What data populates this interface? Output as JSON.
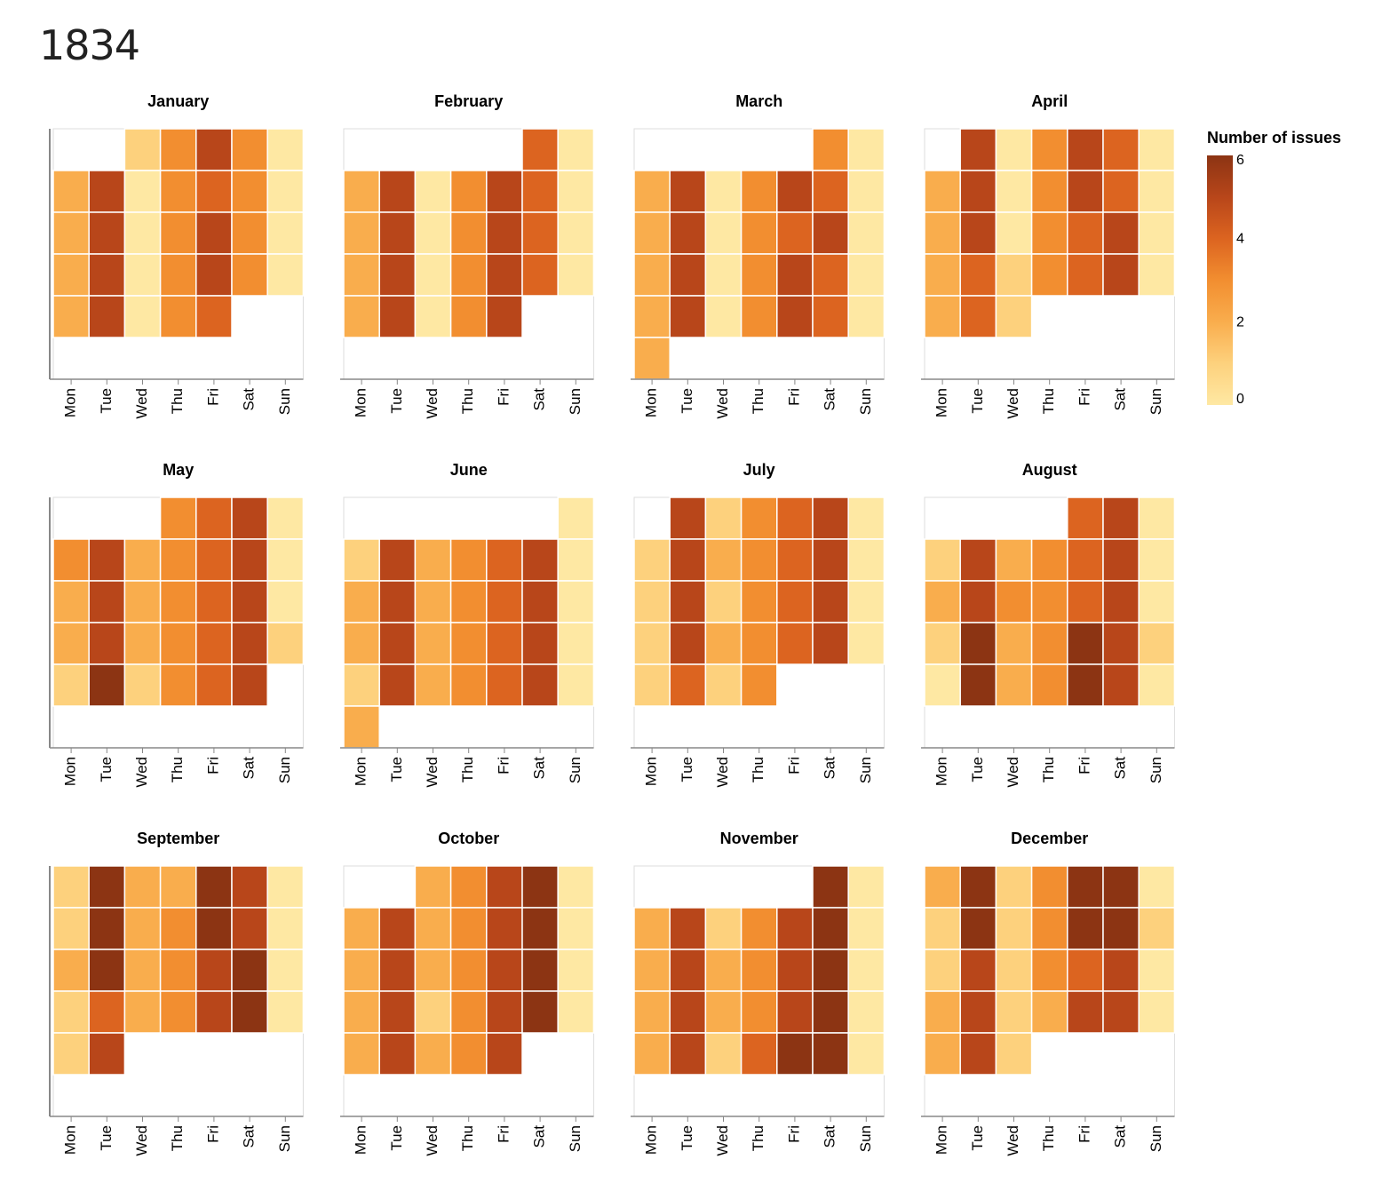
{
  "page_title": "1834",
  "colors": [
    "#fee8a3",
    "#fdd17d",
    "#f9ad4d",
    "#f28e30",
    "#dc6420",
    "#b8461a",
    "#8c3413"
  ],
  "chart_data": {
    "type": "heatmap",
    "title": "1834",
    "legend": {
      "title": "Number of issues",
      "min": 0,
      "max": 6,
      "ticks": [
        0,
        2,
        4,
        6
      ],
      "placement": "right"
    },
    "x_categories": [
      "Mon",
      "Tue",
      "Wed",
      "Thu",
      "Fri",
      "Sat",
      "Sun"
    ],
    "y": "week of month (unlabeled)",
    "months": [
      {
        "name": "January",
        "weeks": [
          [
            null,
            null,
            1,
            3,
            5,
            3,
            0
          ],
          [
            2,
            5,
            0,
            3,
            4,
            3,
            0
          ],
          [
            2,
            5,
            0,
            3,
            5,
            3,
            0
          ],
          [
            2,
            5,
            0,
            3,
            5,
            3,
            0
          ],
          [
            2,
            5,
            0,
            3,
            4,
            null,
            null
          ]
        ]
      },
      {
        "name": "February",
        "weeks": [
          [
            null,
            null,
            null,
            null,
            null,
            4,
            0
          ],
          [
            2,
            5,
            0,
            3,
            5,
            4,
            0
          ],
          [
            2,
            5,
            0,
            3,
            5,
            4,
            0
          ],
          [
            2,
            5,
            0,
            3,
            5,
            4,
            0
          ],
          [
            2,
            5,
            0,
            3,
            5,
            null,
            null
          ]
        ]
      },
      {
        "name": "March",
        "weeks": [
          [
            null,
            null,
            null,
            null,
            null,
            3,
            0
          ],
          [
            2,
            5,
            0,
            3,
            5,
            4,
            0
          ],
          [
            2,
            5,
            0,
            3,
            4,
            5,
            0
          ],
          [
            2,
            5,
            0,
            3,
            5,
            4,
            0
          ],
          [
            2,
            5,
            0,
            3,
            5,
            4,
            0
          ],
          [
            2,
            null,
            null,
            null,
            null,
            null,
            null
          ]
        ]
      },
      {
        "name": "April",
        "weeks": [
          [
            null,
            5,
            0,
            3,
            5,
            4,
            0
          ],
          [
            2,
            5,
            0,
            3,
            5,
            4,
            0
          ],
          [
            2,
            5,
            0,
            3,
            4,
            5,
            0
          ],
          [
            2,
            4,
            1,
            3,
            4,
            5,
            0
          ],
          [
            2,
            4,
            1,
            null,
            null,
            null,
            null
          ]
        ]
      },
      {
        "name": "May",
        "weeks": [
          [
            null,
            null,
            null,
            3,
            4,
            5,
            0
          ],
          [
            3,
            5,
            2,
            3,
            4,
            5,
            0
          ],
          [
            2,
            5,
            2,
            3,
            4,
            5,
            0
          ],
          [
            2,
            5,
            2,
            3,
            4,
            5,
            1
          ],
          [
            1,
            6,
            1,
            3,
            4,
            5,
            null
          ]
        ]
      },
      {
        "name": "June",
        "weeks": [
          [
            null,
            null,
            null,
            null,
            null,
            null,
            0
          ],
          [
            1,
            5,
            2,
            3,
            4,
            5,
            0
          ],
          [
            2,
            5,
            2,
            3,
            4,
            5,
            0
          ],
          [
            2,
            5,
            2,
            3,
            4,
            5,
            0
          ],
          [
            1,
            5,
            2,
            3,
            4,
            5,
            0
          ],
          [
            2,
            null,
            null,
            null,
            null,
            null,
            null
          ]
        ]
      },
      {
        "name": "July",
        "weeks": [
          [
            null,
            5,
            1,
            3,
            4,
            5,
            0
          ],
          [
            1,
            5,
            2,
            3,
            4,
            5,
            0
          ],
          [
            1,
            5,
            1,
            3,
            4,
            5,
            0
          ],
          [
            1,
            5,
            2,
            3,
            4,
            5,
            0
          ],
          [
            1,
            4,
            1,
            3,
            null,
            null,
            null
          ]
        ]
      },
      {
        "name": "August",
        "weeks": [
          [
            null,
            null,
            null,
            null,
            4,
            5,
            0
          ],
          [
            1,
            5,
            2,
            3,
            4,
            5,
            0
          ],
          [
            2,
            5,
            3,
            3,
            4,
            5,
            0
          ],
          [
            1,
            6,
            2,
            3,
            6,
            5,
            1
          ],
          [
            0,
            6,
            2,
            3,
            6,
            5,
            0
          ]
        ]
      },
      {
        "name": "September",
        "weeks": [
          [
            1,
            6,
            2,
            2,
            6,
            5,
            0
          ],
          [
            1,
            6,
            2,
            3,
            6,
            5,
            0
          ],
          [
            2,
            6,
            2,
            3,
            5,
            6,
            0
          ],
          [
            1,
            4,
            2,
            3,
            5,
            6,
            0
          ],
          [
            1,
            5,
            null,
            null,
            null,
            null,
            null
          ]
        ]
      },
      {
        "name": "October",
        "weeks": [
          [
            null,
            null,
            2,
            3,
            5,
            6,
            0
          ],
          [
            2,
            5,
            2,
            3,
            5,
            6,
            0
          ],
          [
            2,
            5,
            2,
            3,
            5,
            6,
            0
          ],
          [
            2,
            5,
            1,
            3,
            5,
            6,
            0
          ],
          [
            2,
            5,
            2,
            3,
            5,
            null,
            null
          ]
        ]
      },
      {
        "name": "November",
        "weeks": [
          [
            null,
            null,
            null,
            null,
            null,
            6,
            0
          ],
          [
            2,
            5,
            1,
            3,
            5,
            6,
            0
          ],
          [
            2,
            5,
            2,
            3,
            5,
            6,
            0
          ],
          [
            2,
            5,
            2,
            3,
            5,
            6,
            0
          ],
          [
            2,
            5,
            1,
            4,
            6,
            6,
            0
          ]
        ]
      },
      {
        "name": "December",
        "weeks": [
          [
            2,
            6,
            1,
            3,
            6,
            6,
            0
          ],
          [
            1,
            6,
            1,
            3,
            6,
            6,
            1
          ],
          [
            1,
            5,
            1,
            3,
            4,
            5,
            0
          ],
          [
            2,
            5,
            1,
            2,
            5,
            5,
            0
          ],
          [
            2,
            5,
            1,
            null,
            null,
            null,
            null
          ]
        ]
      }
    ]
  }
}
